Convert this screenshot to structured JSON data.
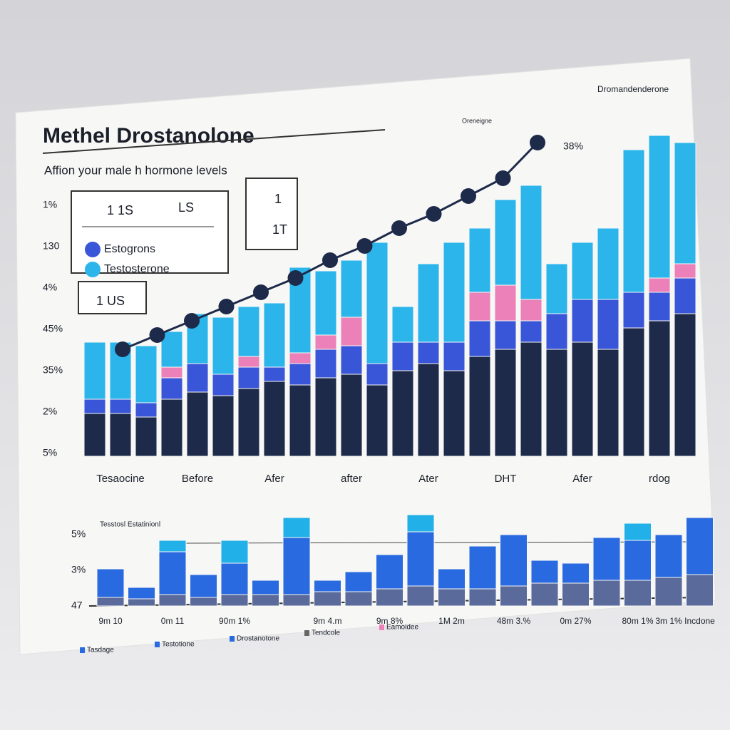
{
  "chart_data": [
    {
      "type": "bar",
      "stacked": true,
      "title": "Methel Drostanolone",
      "subtitle": "Affion your male h hormone levels",
      "corner_label": "Dromandenderone",
      "line_label": "Oreneigne",
      "end_label": "38%",
      "y_labels": [
        "1%",
        "130",
        "4%",
        "45%",
        "35%",
        "2%",
        "5%"
      ],
      "box_texts": [
        "1 1S",
        "LS",
        "1",
        "1T",
        "1 US"
      ],
      "ylim": [
        0,
        100
      ],
      "categories": [
        null,
        "Tesaocine",
        null,
        null,
        "Before",
        null,
        null,
        "Afer",
        null,
        null,
        "after",
        null,
        null,
        "Ater",
        null,
        null,
        "DHT",
        null,
        null,
        "Afer",
        null,
        null,
        "rdog",
        null
      ],
      "series": [
        {
          "color": "#1e2a4a",
          "values": [
            12,
            12,
            11,
            16,
            18,
            17,
            19,
            21,
            20,
            22,
            23,
            20,
            24,
            26,
            24,
            28,
            30,
            32,
            30,
            32,
            30,
            36,
            38,
            40
          ]
        },
        {
          "name": "Estogrons",
          "color": "#3a56d8",
          "values": [
            4,
            4,
            4,
            6,
            8,
            6,
            6,
            4,
            6,
            8,
            8,
            6,
            8,
            6,
            8,
            10,
            8,
            6,
            10,
            12,
            14,
            10,
            8,
            10
          ]
        },
        {
          "color": "#ec80b8",
          "values": [
            0,
            0,
            0,
            3,
            0,
            0,
            3,
            0,
            3,
            4,
            8,
            0,
            0,
            0,
            0,
            8,
            10,
            6,
            0,
            0,
            0,
            0,
            4,
            4
          ]
        },
        {
          "name": "Testosterone",
          "color": "#2bb5ea",
          "values": [
            16,
            16,
            16,
            10,
            14,
            16,
            14,
            18,
            24,
            18,
            16,
            34,
            10,
            22,
            28,
            18,
            24,
            32,
            14,
            16,
            20,
            40,
            40,
            34
          ]
        }
      ],
      "line": {
        "color": "#1e2a4a",
        "values": [
          30,
          34,
          38,
          42,
          46,
          50,
          55,
          59,
          64,
          68,
          73,
          78,
          88
        ]
      }
    },
    {
      "type": "bar",
      "stacked": true,
      "title": "Tesstosl Estatinionl",
      "y_labels": [
        "5%",
        "3%",
        "47"
      ],
      "ylim": [
        0,
        100
      ],
      "categories": [
        "9m 10",
        null,
        "0m 11",
        null,
        "90m 1%",
        null,
        null,
        "9m 4.m",
        null,
        "9m 8%",
        null,
        "1M 2m",
        null,
        "48m 3.%",
        null,
        "0m 27%",
        null,
        "80m 1%",
        "3m 1%",
        "Incdone"
      ],
      "legend": [
        "Tasdage",
        "Testotione",
        "Drostanotone",
        "Tendcole",
        "Eamoidee"
      ],
      "legend_colors": [
        "#2a6ae0",
        "#2a6ae0",
        "#2a6ae0",
        "#666666",
        "#ec80b8"
      ],
      "series": [
        {
          "color": "#5a6a9a",
          "values": [
            6,
            5,
            8,
            6,
            8,
            8,
            8,
            10,
            10,
            12,
            14,
            12,
            12,
            14,
            16,
            16,
            18,
            18,
            20,
            22
          ]
        },
        {
          "color": "#2a6ae0",
          "values": [
            20,
            8,
            30,
            16,
            22,
            10,
            40,
            8,
            14,
            24,
            38,
            14,
            30,
            36,
            16,
            14,
            30,
            28,
            30,
            40
          ]
        },
        {
          "color": "#22b0e8",
          "values": [
            0,
            0,
            8,
            0,
            16,
            0,
            14,
            0,
            0,
            0,
            12,
            0,
            0,
            0,
            0,
            0,
            0,
            12,
            0,
            0
          ]
        }
      ]
    }
  ]
}
